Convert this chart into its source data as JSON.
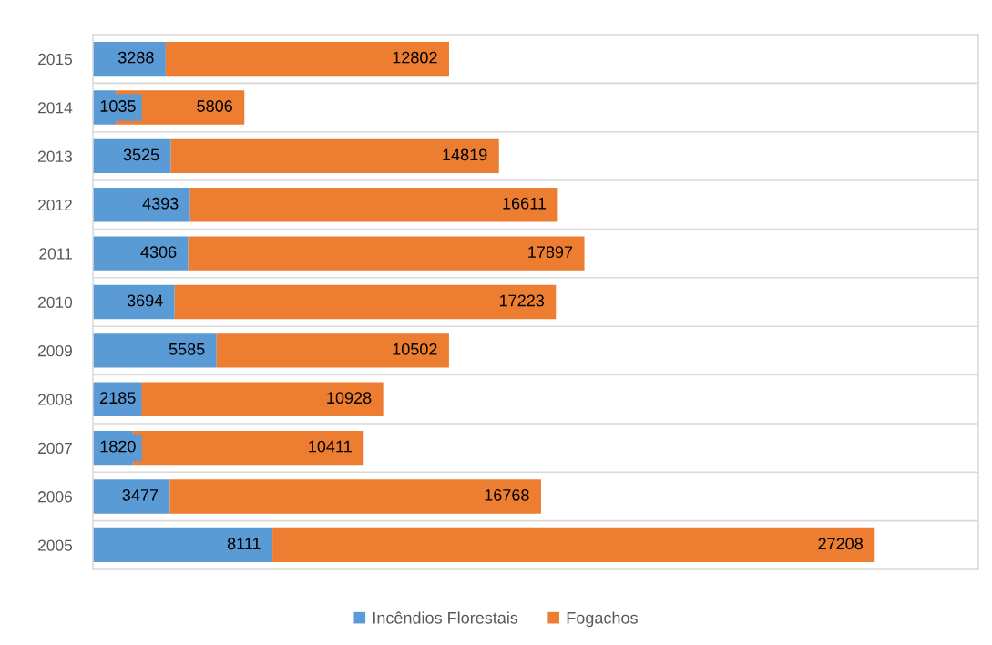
{
  "chart_data": {
    "type": "bar",
    "orientation": "horizontal",
    "stacked": true,
    "categories": [
      "2015",
      "2014",
      "2013",
      "2012",
      "2011",
      "2010",
      "2009",
      "2008",
      "2007",
      "2006",
      "2005"
    ],
    "series": [
      {
        "name": "Incêndios Florestais",
        "color": "#5b9bd5",
        "values": [
          3288,
          1035,
          3525,
          4393,
          4306,
          3694,
          5585,
          2185,
          1820,
          3477,
          8111
        ]
      },
      {
        "name": "Fogachos",
        "color": "#ed7d31",
        "values": [
          12802,
          5806,
          14819,
          16611,
          17897,
          17223,
          10502,
          10928,
          10411,
          16768,
          27208
        ]
      }
    ],
    "xlim": [
      0,
      40000
    ],
    "data_labels": true,
    "grid": "y",
    "legend": "bottom",
    "tick_labels": "y"
  }
}
